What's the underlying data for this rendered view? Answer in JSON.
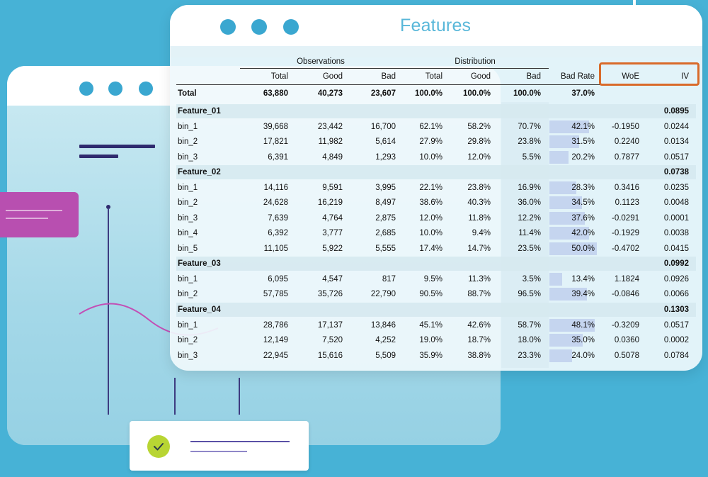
{
  "colors": {
    "background": "#47b2d6",
    "title": "#58b7d9",
    "highlight_border": "#d96a2a",
    "bad_rate_fill": "#c5d5ef",
    "magenta_card": "#b84fb0",
    "check_circle": "#b8d533"
  },
  "window": {
    "title": "Features"
  },
  "icons": {
    "check": "check-icon"
  },
  "table": {
    "group_headers": {
      "observations": "Observations",
      "distribution": "Distribution"
    },
    "columns": [
      "Total",
      "Good",
      "Bad",
      "Total",
      "Good",
      "Bad",
      "Bad Rate",
      "WoE",
      "IV"
    ],
    "total_row": {
      "label": "Total",
      "cells": [
        "63,880",
        "40,273",
        "23,607",
        "100.0%",
        "100.0%",
        "100.0%",
        "37.0%",
        "",
        ""
      ]
    },
    "features": [
      {
        "name": "Feature_01",
        "iv": "0.0895",
        "bins": [
          {
            "label": "bin_1",
            "cells": [
              "39,668",
              "23,442",
              "16,700",
              "62.1%",
              "58.2%",
              "70.7%",
              "42.1%",
              "-0.1950",
              "0.0244"
            ],
            "bad_rate": 0.421
          },
          {
            "label": "bin_2",
            "cells": [
              "17,821",
              "11,982",
              "5,614",
              "27.9%",
              "29.8%",
              "23.8%",
              "31.5%",
              "0.2240",
              "0.0134"
            ],
            "bad_rate": 0.315
          },
          {
            "label": "bin_3",
            "cells": [
              "6,391",
              "4,849",
              "1,293",
              "10.0%",
              "12.0%",
              "5.5%",
              "20.2%",
              "0.7877",
              "0.0517"
            ],
            "bad_rate": 0.202
          }
        ]
      },
      {
        "name": "Feature_02",
        "iv": "0.0738",
        "bins": [
          {
            "label": "bin_1",
            "cells": [
              "14,116",
              "9,591",
              "3,995",
              "22.1%",
              "23.8%",
              "16.9%",
              "28.3%",
              "0.3416",
              "0.0235"
            ],
            "bad_rate": 0.283
          },
          {
            "label": "bin_2",
            "cells": [
              "24,628",
              "16,219",
              "8,497",
              "38.6%",
              "40.3%",
              "36.0%",
              "34.5%",
              "0.1123",
              "0.0048"
            ],
            "bad_rate": 0.345
          },
          {
            "label": "bin_3",
            "cells": [
              "7,639",
              "4,764",
              "2,875",
              "12.0%",
              "11.8%",
              "12.2%",
              "37.6%",
              "-0.0291",
              "0.0001"
            ],
            "bad_rate": 0.376
          },
          {
            "label": "bin_4",
            "cells": [
              "6,392",
              "3,777",
              "2,685",
              "10.0%",
              "9.4%",
              "11.4%",
              "42.0%",
              "-0.1929",
              "0.0038"
            ],
            "bad_rate": 0.42
          },
          {
            "label": "bin_5",
            "cells": [
              "11,105",
              "5,922",
              "5,555",
              "17.4%",
              "14.7%",
              "23.5%",
              "50.0%",
              "-0.4702",
              "0.0415"
            ],
            "bad_rate": 0.5
          }
        ]
      },
      {
        "name": "Feature_03",
        "iv": "0.0992",
        "bins": [
          {
            "label": "bin_1",
            "cells": [
              "6,095",
              "4,547",
              "817",
              "9.5%",
              "11.3%",
              "3.5%",
              "13.4%",
              "1.1824",
              "0.0926"
            ],
            "bad_rate": 0.134
          },
          {
            "label": "bin_2",
            "cells": [
              "57,785",
              "35,726",
              "22,790",
              "90.5%",
              "88.7%",
              "96.5%",
              "39.4%",
              "-0.0846",
              "0.0066"
            ],
            "bad_rate": 0.394
          }
        ]
      },
      {
        "name": "Feature_04",
        "iv": "0.1303",
        "bins": [
          {
            "label": "bin_1",
            "cells": [
              "28,786",
              "17,137",
              "13,846",
              "45.1%",
              "42.6%",
              "58.7%",
              "48.1%",
              "-0.3209",
              "0.0517"
            ],
            "bad_rate": 0.481
          },
          {
            "label": "bin_2",
            "cells": [
              "12,149",
              "7,520",
              "4,252",
              "19.0%",
              "18.7%",
              "18.0%",
              "35.0%",
              "0.0360",
              "0.0002"
            ],
            "bad_rate": 0.35
          },
          {
            "label": "bin_3",
            "cells": [
              "22,945",
              "15,616",
              "5,509",
              "35.9%",
              "38.8%",
              "23.3%",
              "24.0%",
              "0.5078",
              "0.0784"
            ],
            "bad_rate": 0.24
          }
        ]
      }
    ]
  }
}
